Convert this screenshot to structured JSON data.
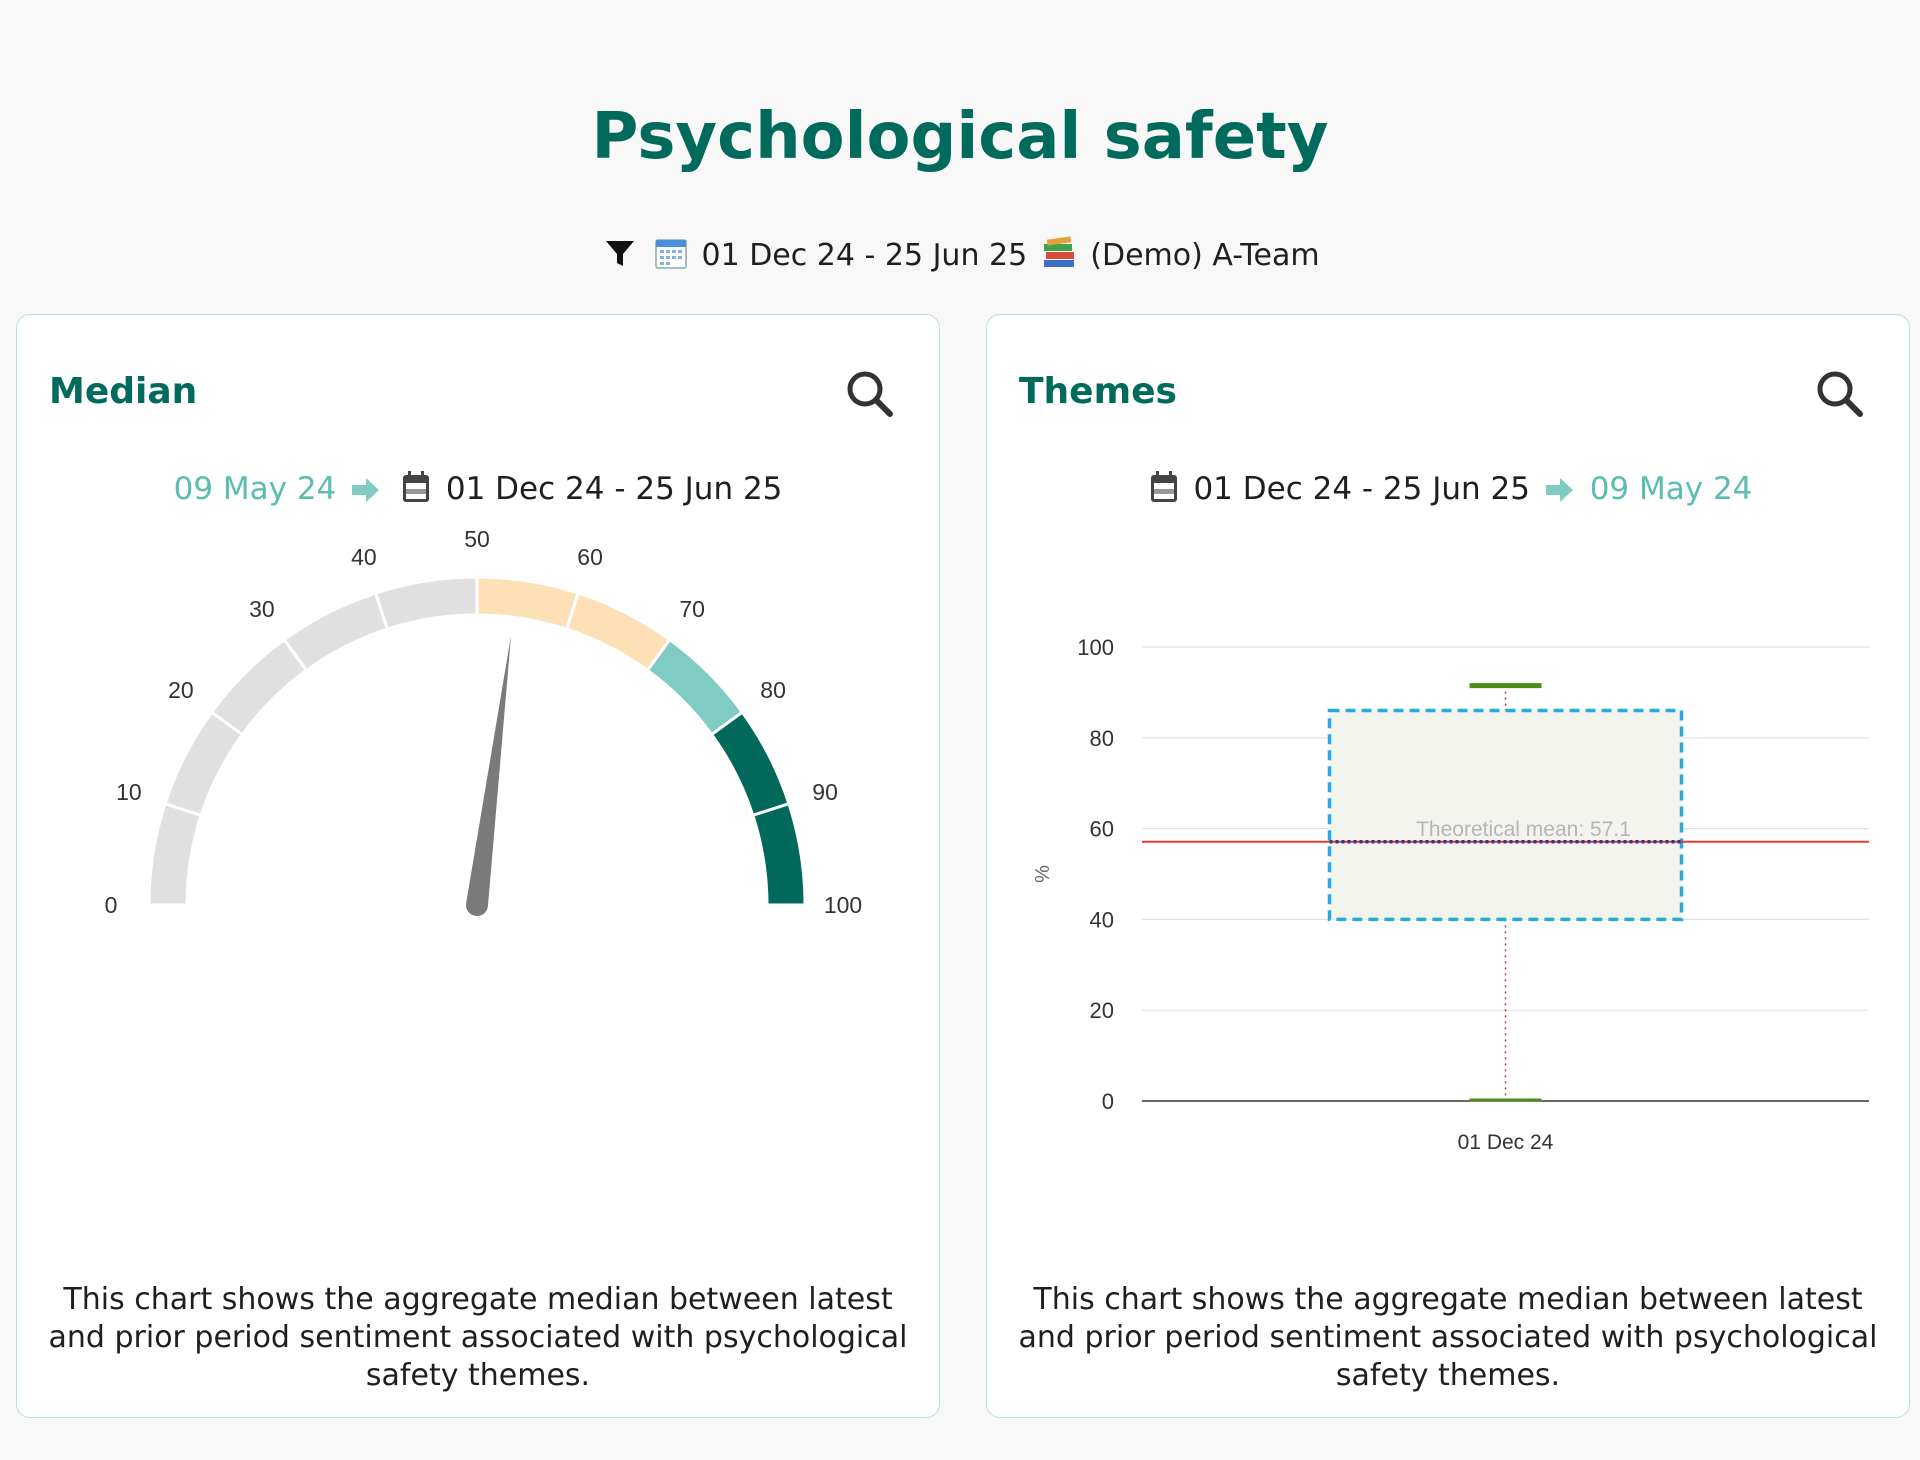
{
  "page": {
    "title": "Psychological safety"
  },
  "filters": {
    "date_range": "01 Dec 24 - 25 Jun 25",
    "team": "(Demo) A-Team",
    "icons": [
      "filter-icon",
      "calendar-icon",
      "books-icon"
    ]
  },
  "median_card": {
    "title": "Median",
    "prior_period": "09 May 24",
    "current_period": "01 Dec 24 - 25 Jun 25",
    "caption": "This chart shows the aggregate median between latest and prior period sentiment associated with psychological safety themes."
  },
  "themes_card": {
    "title": "Themes",
    "current_period": "01 Dec 24 - 25 Jun 25",
    "prior_period": "09 May 24",
    "caption": "This chart shows the aggregate median between latest and prior period sentiment associated with psychological safety themes."
  },
  "colors": {
    "brand": "#006a5c",
    "accent": "#5bbcb0",
    "gauge_grey": "#e0e0e0",
    "gauge_peach": "#fde0b5",
    "gauge_teal_light": "#80cbc4",
    "gauge_teal_dark": "#00695c",
    "needle": "#7a7a7a",
    "mean_line": "#e53935",
    "box_border": "#29a8e0",
    "whisker": "#4c8c1a"
  },
  "chart_data": [
    {
      "type": "gauge",
      "min": 0,
      "max": 100,
      "value": 54,
      "ticks": [
        "0",
        "10",
        "20",
        "30",
        "40",
        "50",
        "60",
        "70",
        "80",
        "90",
        "100"
      ],
      "bands": [
        {
          "from": 0,
          "to": 50,
          "color": "#e0e0e0"
        },
        {
          "from": 50,
          "to": 70,
          "color": "#fde0b5"
        },
        {
          "from": 70,
          "to": 80,
          "color": "#80cbc4"
        },
        {
          "from": 80,
          "to": 100,
          "color": "#00695c"
        }
      ]
    },
    {
      "type": "box",
      "categories": [
        "01 Dec 24"
      ],
      "ylabel": "%",
      "ylim": [
        0,
        100
      ],
      "yticks": [
        "0",
        "20",
        "40",
        "60",
        "80",
        "100"
      ],
      "grid": true,
      "box": {
        "min": 0,
        "q1": 40,
        "median": 57.1,
        "q3": 86,
        "max": 91.5
      },
      "mean_line": {
        "value": 57.1,
        "label": "Theoretical mean: 57.1"
      }
    }
  ]
}
